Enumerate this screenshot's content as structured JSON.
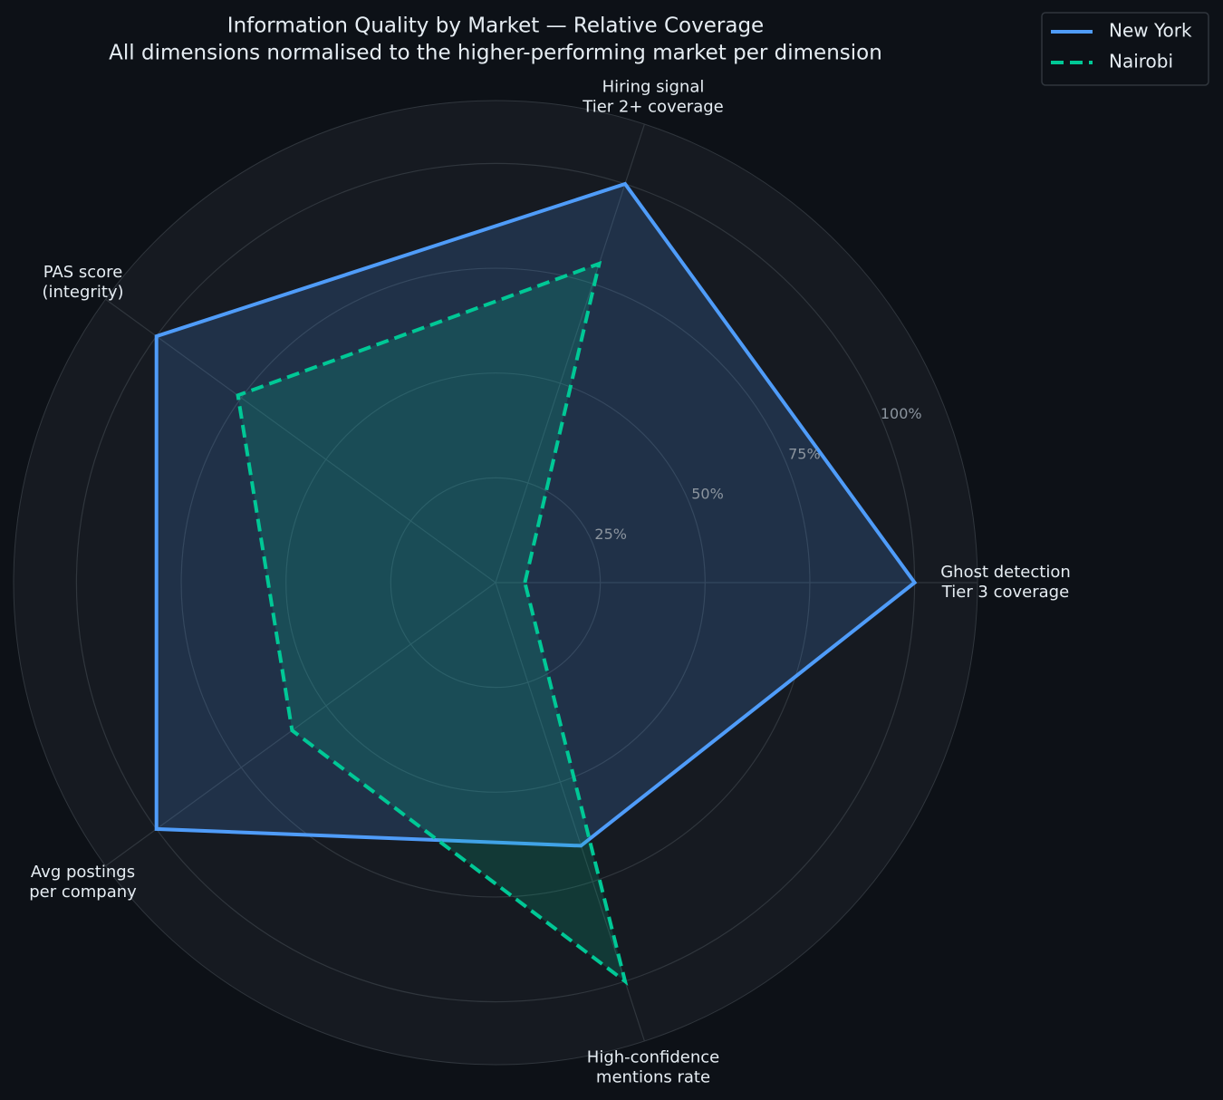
{
  "chart_data": {
    "type": "radar",
    "title": "Information Quality by Market — Relative Coverage",
    "subtitle": "All dimensions normalised to the higher-performing market per dimension",
    "categories": [
      "Ghost detection\nTier 3 coverage",
      "Hiring signal\nTier 2+ coverage",
      "PAS score\n(integrity)",
      "Avg postings\nper company",
      "High-confidence\nmentions rate"
    ],
    "ylim": [
      0,
      115
    ],
    "yticks": [
      {
        "value": 25,
        "label": "25%"
      },
      {
        "value": 50,
        "label": "50%"
      },
      {
        "value": 75,
        "label": "75%"
      },
      {
        "value": 100,
        "label": "100%"
      }
    ],
    "grid": true,
    "legend": "upper right",
    "series": [
      {
        "name": "New York",
        "color": "#4f9cf9",
        "line_style": "solid",
        "values": [
          100,
          100,
          100,
          100,
          66
        ]
      },
      {
        "name": "Nairobi",
        "color": "#00c896",
        "line_style": "dashed",
        "values": [
          7,
          80,
          76,
          60,
          100
        ]
      }
    ]
  }
}
